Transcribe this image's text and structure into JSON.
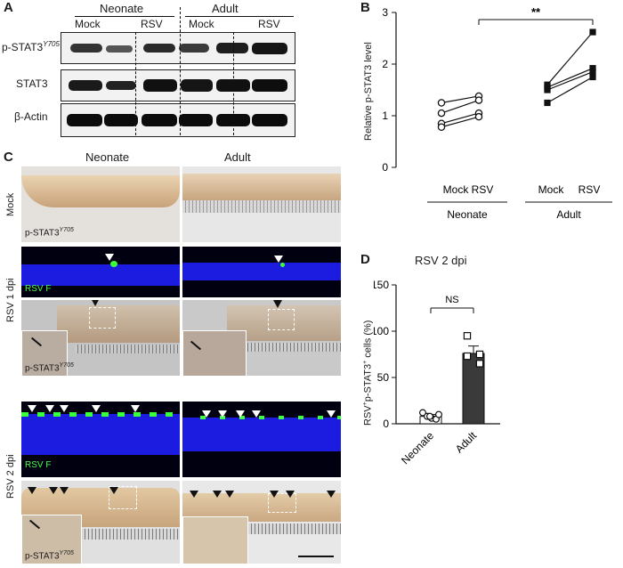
{
  "panels": {
    "a": "A",
    "b": "B",
    "c": "C",
    "d": "D"
  },
  "blot": {
    "groups": [
      "Neonate",
      "Adult"
    ],
    "conditions": [
      "Mock",
      "RSV",
      "Mock",
      "RSV"
    ],
    "rows": [
      "p-STAT3",
      "STAT3",
      "β-Actin"
    ],
    "sup": "Y705"
  },
  "panel_c": {
    "columns": [
      "Neonate",
      "Adult"
    ],
    "rows": [
      "Mock",
      "RSV 1 dpi",
      "RSV 2 dpi"
    ],
    "stain_label": "p-STAT3",
    "stain_sup": "Y705",
    "fluor_label": "RSV F"
  },
  "chart_b": {
    "ylabel": "Relative p-STAT3 level",
    "significance": "**",
    "groups": [
      "Neonate",
      "Adult"
    ]
  },
  "chart_d": {
    "title": "RSV 2 dpi",
    "ylabel_pre": "RSV",
    "ylabel_mid": "p-STAT3",
    "ylabel_post": " cells (%)",
    "significance": "NS"
  },
  "chart_data": [
    {
      "type": "scatter",
      "categories": [
        "Mock",
        "RSV",
        "Mock",
        "RSV"
      ],
      "groups": [
        "Neonate",
        "Adult"
      ],
      "ylabel": "Relative p-STAT3 level",
      "ylim": [
        0,
        3
      ],
      "yticks": [
        0,
        1,
        2,
        3
      ],
      "paired": true,
      "series": [
        {
          "group": "Neonate",
          "marker": "open-circle",
          "mock": [
            1.25,
            1.05,
            0.85,
            0.78
          ],
          "rsv": [
            1.38,
            1.3,
            1.05,
            0.98
          ]
        },
        {
          "group": "Adult",
          "marker": "filled-square",
          "mock": [
            1.6,
            1.55,
            1.5,
            1.25
          ],
          "rsv": [
            2.62,
            1.92,
            1.85,
            1.75
          ]
        }
      ],
      "annotation": "**"
    },
    {
      "type": "bar",
      "title": "RSV 2 dpi",
      "categories": [
        "Neonate",
        "Adult"
      ],
      "values": [
        8,
        76
      ],
      "errors": [
        2,
        8
      ],
      "points": [
        [
          12,
          8,
          6,
          5,
          10,
          8
        ],
        [
          95,
          75,
          73,
          65
        ]
      ],
      "ylabel": "RSV+p-STAT3+ cells (%)",
      "ylim": [
        0,
        150
      ],
      "yticks": [
        0,
        50,
        100,
        150
      ],
      "annotation": "NS"
    }
  ]
}
